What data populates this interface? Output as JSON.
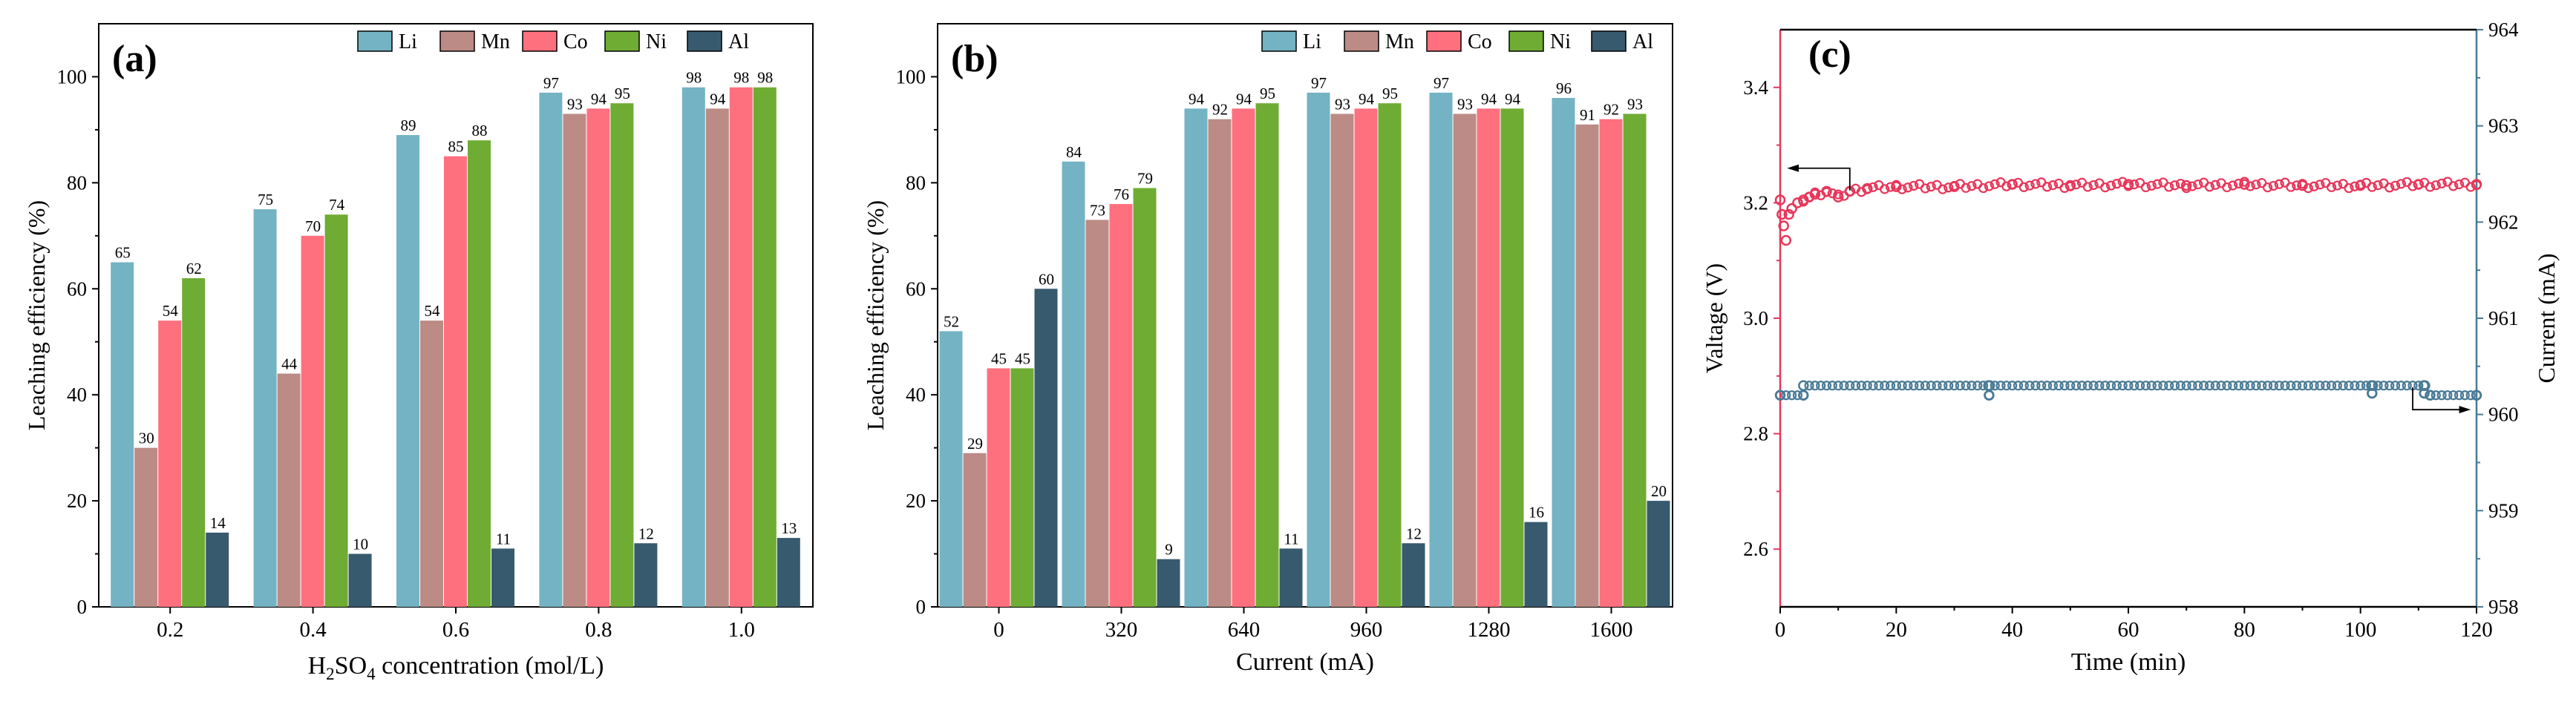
{
  "colors": {
    "Li": "#73b3c4",
    "Mn": "#bc8b86",
    "Co": "#ff707f",
    "Ni": "#6fac33",
    "Al": "#375a6e",
    "voltage": "#e8365a",
    "current": "#4a7a96"
  },
  "chart_data": [
    {
      "type": "bar",
      "panel_label": "(a)",
      "xlabel_main": "H",
      "xlabel_sub": "2",
      "xlabel_rest": "SO",
      "xlabel_sub2": "4",
      "xlabel_end": " concentration (mol/L)",
      "ylabel": "Leaching efficiency (%)",
      "ylim": [
        0,
        110
      ],
      "yticks": [
        "0",
        "20",
        "40",
        "60",
        "80",
        "100"
      ],
      "categories": [
        "0.2",
        "0.4",
        "0.6",
        "0.8",
        "1.0"
      ],
      "legend": [
        "Li",
        "Mn",
        "Co",
        "Ni",
        "Al"
      ],
      "series": [
        {
          "name": "Li",
          "values": [
            65,
            75,
            89,
            97,
            98
          ]
        },
        {
          "name": "Mn",
          "values": [
            30,
            44,
            54,
            93,
            94
          ]
        },
        {
          "name": "Co",
          "values": [
            54,
            70,
            85,
            94,
            98
          ]
        },
        {
          "name": "Ni",
          "values": [
            62,
            74,
            88,
            95,
            98
          ]
        },
        {
          "name": "Al",
          "values": [
            14,
            10,
            11,
            12,
            13
          ]
        }
      ],
      "data_labels": [
        [
          "65",
          "75",
          "89",
          "97",
          "98"
        ],
        [
          "30",
          "44",
          "54",
          "93",
          "94"
        ],
        [
          "54",
          "70",
          "85",
          "94",
          "98"
        ],
        [
          "62",
          "74",
          "88",
          "95",
          "98"
        ],
        [
          "14",
          "10",
          "11",
          "12",
          "13"
        ]
      ]
    },
    {
      "type": "bar",
      "panel_label": "(b)",
      "xlabel": "Current (mA)",
      "ylabel": "Leaching efficiency (%)",
      "ylim": [
        0,
        110
      ],
      "yticks": [
        "0",
        "20",
        "40",
        "60",
        "80",
        "100"
      ],
      "categories": [
        "0",
        "320",
        "640",
        "960",
        "1280",
        "1600"
      ],
      "legend": [
        "Li",
        "Mn",
        "Co",
        "Ni",
        "Al"
      ],
      "series": [
        {
          "name": "Li",
          "values": [
            52,
            84,
            94,
            97,
            97,
            96
          ]
        },
        {
          "name": "Mn",
          "values": [
            29,
            73,
            92,
            93,
            93,
            91
          ]
        },
        {
          "name": "Co",
          "values": [
            45,
            76,
            94,
            94,
            94,
            92
          ]
        },
        {
          "name": "Ni",
          "values": [
            45,
            79,
            95,
            95,
            94,
            93
          ]
        },
        {
          "name": "Al",
          "values": [
            60,
            9,
            11,
            12,
            16,
            20
          ]
        }
      ],
      "data_labels": [
        [
          "52",
          "84",
          "94",
          "97",
          "97",
          "96"
        ],
        [
          "29",
          "73",
          "92",
          "93",
          "93",
          "91"
        ],
        [
          "45",
          "76",
          "94",
          "94",
          "94",
          "92"
        ],
        [
          "45",
          "79",
          "95",
          "95",
          "94",
          "93"
        ],
        [
          "60",
          "9",
          "11",
          "12",
          "16",
          "20"
        ]
      ]
    },
    {
      "type": "scatter",
      "panel_label": "(c)",
      "xlabel": "Time (min)",
      "ylabel_left": "Valtage (V)",
      "ylabel_right": "Current (mA)",
      "xlim": [
        0,
        120
      ],
      "ylim_left": [
        2.5,
        3.5
      ],
      "ylim_right": [
        958,
        964
      ],
      "xticks": [
        "0",
        "20",
        "40",
        "60",
        "80",
        "100",
        "120"
      ],
      "yticks_left": [
        "2.6",
        "2.8",
        "3.0",
        "3.2",
        "3.4"
      ],
      "yticks_right": [
        "958",
        "959",
        "960",
        "961",
        "962",
        "963",
        "964"
      ],
      "voltage": {
        "x": [
          0,
          0.3,
          0.6,
          1,
          1.5,
          2,
          3,
          4,
          5,
          6,
          8,
          10,
          12,
          15,
          20,
          30,
          40,
          50,
          60,
          70,
          80,
          90,
          100,
          110,
          120
        ],
        "y": [
          3.205,
          3.18,
          3.16,
          3.135,
          3.18,
          3.19,
          3.2,
          3.205,
          3.21,
          3.215,
          3.22,
          3.21,
          3.22,
          3.225,
          3.228,
          3.228,
          3.232,
          3.23,
          3.232,
          3.23,
          3.232,
          3.23,
          3.23,
          3.232,
          3.232
        ]
      },
      "current": {
        "x": [
          0,
          4,
          4.01,
          35.9,
          36,
          36.1,
          101.9,
          102,
          102.1,
          110.9,
          111,
          111.1,
          112,
          120
        ],
        "y": [
          960.2,
          960.2,
          960.3,
          960.3,
          960.2,
          960.3,
          960.3,
          960.22,
          960.3,
          960.3,
          960.22,
          960.3,
          960.2,
          960.2
        ]
      }
    }
  ]
}
